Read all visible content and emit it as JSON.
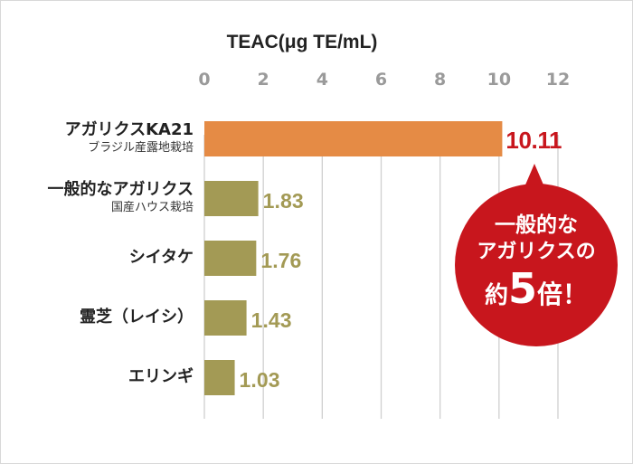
{
  "chart_data": {
    "type": "bar",
    "orientation": "horizontal",
    "title": "TEAC(μg TE/mL)",
    "categories": [
      {
        "label": "アガリクスKA21",
        "sublabel": "ブラジル産露地栽培"
      },
      {
        "label": "一般的なアガリクス",
        "sublabel": "国産ハウス栽培"
      },
      {
        "label": "シイタケ",
        "sublabel": ""
      },
      {
        "label": "霊芝（レイシ）",
        "sublabel": ""
      },
      {
        "label": "エリンギ",
        "sublabel": ""
      }
    ],
    "values": [
      10.11,
      1.83,
      1.76,
      1.43,
      1.03
    ],
    "value_labels": [
      "10.11",
      "1.83",
      "1.76",
      "1.43",
      "1.03"
    ],
    "xlim": [
      0,
      12
    ],
    "xticks": [
      "0",
      "2",
      "4",
      "6",
      "8",
      "10",
      "12"
    ],
    "grid": true,
    "colors": {
      "highlight": "#e58b45",
      "normal": "#a39a55",
      "highlight_label": "#c8161d",
      "normal_label": "#a39a55",
      "callout": "#c8161d"
    },
    "callout": {
      "lines": [
        "一般的な",
        "アガリクスの"
      ],
      "prefix": "約",
      "number": "5",
      "suffix": "倍！"
    }
  }
}
